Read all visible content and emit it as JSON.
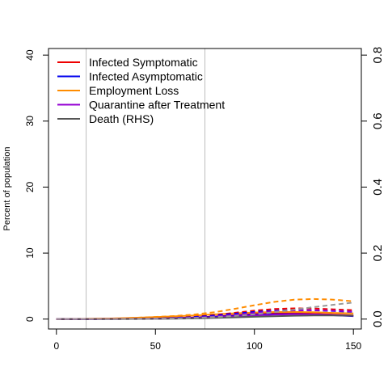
{
  "chart_data": {
    "type": "line",
    "title": "",
    "xlabel": "",
    "ylabel": "Percent of population",
    "y2label": "",
    "xlim": [
      -4,
      154
    ],
    "ylim": [
      -1.5,
      41
    ],
    "y2lim": [
      -0.03,
      0.82
    ],
    "x_ticks": [
      0,
      50,
      100,
      150
    ],
    "y_ticks": [
      0,
      10,
      20,
      30,
      40
    ],
    "y2_ticks": [
      0.0,
      0.2,
      0.4,
      0.6,
      0.8
    ],
    "vlines": [
      15,
      75
    ],
    "grid": false,
    "legend_position": "top-left",
    "x": [
      0,
      10,
      20,
      30,
      40,
      50,
      60,
      70,
      80,
      90,
      100,
      110,
      120,
      130,
      140,
      150
    ],
    "series": [
      {
        "name": "Infected Symptomatic",
        "color": "#ee0000",
        "axis": "left",
        "dash": false,
        "values": [
          0.0,
          0.01,
          0.02,
          0.04,
          0.07,
          0.1,
          0.16,
          0.25,
          0.4,
          0.58,
          0.75,
          0.85,
          0.88,
          0.8,
          0.68,
          0.55
        ]
      },
      {
        "name": "Infected Asymptomatic",
        "color": "#0000ee",
        "axis": "left",
        "dash": false,
        "values": [
          0.0,
          0.01,
          0.02,
          0.04,
          0.06,
          0.09,
          0.14,
          0.22,
          0.35,
          0.5,
          0.65,
          0.74,
          0.76,
          0.7,
          0.58,
          0.45
        ]
      },
      {
        "name": "Employment Loss",
        "color": "#ff8c00",
        "axis": "left",
        "dash": false,
        "values": [
          0.0,
          0.02,
          0.05,
          0.1,
          0.2,
          0.3,
          0.42,
          0.56,
          0.72,
          0.88,
          1.0,
          1.07,
          1.08,
          1.03,
          0.94,
          0.85
        ]
      },
      {
        "name": "Quarantine after Treatment",
        "color": "#9400d3",
        "axis": "left",
        "dash": false,
        "values": [
          0.0,
          0.0,
          0.01,
          0.02,
          0.04,
          0.06,
          0.1,
          0.16,
          0.26,
          0.4,
          0.55,
          0.67,
          0.73,
          0.71,
          0.62,
          0.5
        ]
      },
      {
        "name": "Death (RHS)",
        "color": "#555555",
        "axis": "right",
        "dash": false,
        "values": [
          0.0,
          0.0,
          0.0,
          0.0001,
          0.0003,
          0.0006,
          0.0012,
          0.002,
          0.0035,
          0.0052,
          0.007,
          0.0088,
          0.0102,
          0.011,
          0.011,
          0.0105
        ]
      },
      {
        "name": "",
        "color": "#ee0000",
        "axis": "left",
        "dash": true,
        "values": [
          0.0,
          0.01,
          0.02,
          0.05,
          0.08,
          0.12,
          0.2,
          0.35,
          0.62,
          0.95,
          1.28,
          1.52,
          1.62,
          1.6,
          1.48,
          1.35
        ]
      },
      {
        "name": "",
        "color": "#0000ee",
        "axis": "left",
        "dash": true,
        "values": [
          0.0,
          0.01,
          0.02,
          0.04,
          0.07,
          0.11,
          0.18,
          0.31,
          0.54,
          0.82,
          1.08,
          1.27,
          1.35,
          1.33,
          1.22,
          1.1
        ]
      },
      {
        "name": "",
        "color": "#ff8c00",
        "axis": "left",
        "dash": true,
        "values": [
          0.0,
          0.02,
          0.05,
          0.1,
          0.2,
          0.32,
          0.47,
          0.7,
          1.05,
          1.55,
          2.1,
          2.6,
          2.95,
          3.05,
          2.95,
          2.7
        ]
      },
      {
        "name": "",
        "color": "#9400d3",
        "axis": "left",
        "dash": true,
        "values": [
          0.0,
          0.0,
          0.01,
          0.02,
          0.04,
          0.07,
          0.12,
          0.22,
          0.4,
          0.66,
          0.94,
          1.18,
          1.32,
          1.35,
          1.27,
          1.15
        ]
      },
      {
        "name": "",
        "color": "#999999",
        "axis": "right",
        "dash": true,
        "values": [
          0.0,
          0.0,
          0.0,
          0.0002,
          0.0005,
          0.001,
          0.002,
          0.0035,
          0.006,
          0.0095,
          0.0145,
          0.021,
          0.0285,
          0.0365,
          0.0435,
          0.05
        ]
      }
    ]
  }
}
